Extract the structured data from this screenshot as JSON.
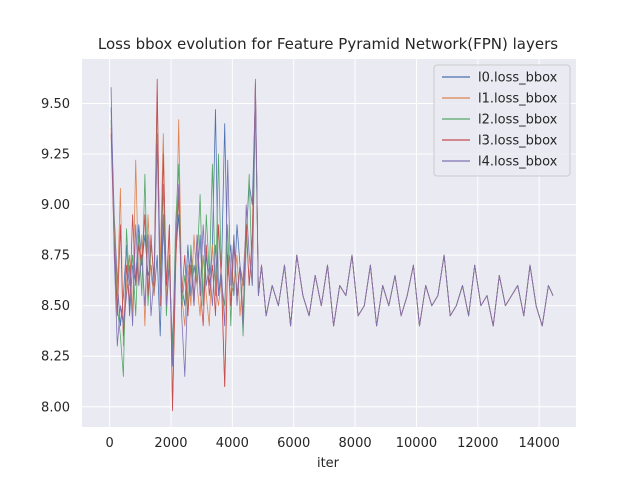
{
  "chart_data": {
    "type": "line",
    "title": "Loss bbox evolution for Feature Pyramid Network(FPN) layers",
    "xlabel": "iter",
    "ylabel": "",
    "xlim": [
      -900,
      15200
    ],
    "ylim": [
      7.9,
      9.72
    ],
    "xticks": [
      0,
      2000,
      4000,
      6000,
      8000,
      10000,
      12000,
      14000
    ],
    "xtick_labels": [
      "0",
      "2000",
      "4000",
      "6000",
      "8000",
      "10000",
      "12000",
      "14000"
    ],
    "yticks": [
      8.0,
      8.25,
      8.5,
      8.75,
      9.0,
      9.25,
      9.5
    ],
    "ytick_labels": [
      "8.00",
      "8.25",
      "8.50",
      "8.75",
      "9.00",
      "9.25",
      "9.50"
    ],
    "grid": true,
    "legend_position": "top-right",
    "x": [
      50,
      150,
      250,
      350,
      450,
      550,
      650,
      750,
      850,
      950,
      1050,
      1150,
      1250,
      1350,
      1450,
      1550,
      1650,
      1750,
      1850,
      1950,
      2050,
      2150,
      2250,
      2350,
      2450,
      2550,
      2650,
      2750,
      2850,
      2950,
      3050,
      3150,
      3250,
      3350,
      3450,
      3550,
      3650,
      3750,
      3850,
      3950,
      4050,
      4150,
      4250,
      4350,
      4450,
      4550,
      4650,
      4750,
      4850,
      4950,
      5100,
      5300,
      5500,
      5700,
      5900,
      6100,
      6300,
      6500,
      6700,
      6900,
      7100,
      7300,
      7500,
      7700,
      7900,
      8100,
      8300,
      8500,
      8700,
      8900,
      9100,
      9300,
      9500,
      9700,
      9900,
      10100,
      10300,
      10500,
      10700,
      10900,
      11100,
      11300,
      11500,
      11700,
      11900,
      12100,
      12300,
      12500,
      12700,
      12900,
      13100,
      13300,
      13500,
      13700,
      13900,
      14100,
      14300,
      14450
    ],
    "series": [
      {
        "name": "l0.loss_bbox",
        "color": "#4c72b0",
        "values": [
          9.48,
          8.95,
          8.62,
          8.4,
          8.55,
          8.8,
          8.45,
          8.7,
          8.62,
          8.9,
          8.7,
          8.85,
          8.65,
          8.7,
          8.55,
          8.75,
          8.35,
          8.9,
          8.6,
          8.7,
          8.3,
          8.75,
          8.95,
          8.6,
          8.5,
          8.8,
          8.55,
          8.7,
          8.6,
          8.85,
          8.5,
          8.75,
          8.6,
          8.8,
          9.47,
          8.55,
          8.7,
          9.4,
          8.65,
          8.8,
          8.55,
          8.9,
          8.7,
          8.6,
          8.85,
          9.1,
          9.0,
          9.55,
          8.55,
          8.7,
          8.45,
          8.6,
          8.5,
          8.7,
          8.4,
          8.75,
          8.55,
          8.45,
          8.65,
          8.5,
          8.7,
          8.4,
          8.6,
          8.55,
          8.75,
          8.45,
          8.5,
          8.7,
          8.4,
          8.6,
          8.5,
          8.65,
          8.45,
          8.55,
          8.7,
          8.4,
          8.6,
          8.5,
          8.55,
          8.75,
          8.45,
          8.5,
          8.6,
          8.45,
          8.7,
          8.5,
          8.55,
          8.4,
          8.65,
          8.5,
          8.55,
          8.6,
          8.45,
          8.7,
          8.5,
          8.4,
          8.6,
          8.55
        ]
      },
      {
        "name": "l1.loss_bbox",
        "color": "#dd8452",
        "values": [
          9.38,
          8.9,
          8.55,
          9.08,
          8.3,
          8.6,
          8.75,
          8.45,
          9.22,
          8.6,
          8.85,
          8.4,
          8.95,
          8.65,
          8.55,
          9.35,
          8.7,
          9.35,
          8.5,
          8.9,
          8.0,
          8.65,
          9.42,
          8.55,
          8.4,
          8.7,
          8.5,
          8.85,
          8.6,
          8.45,
          8.75,
          8.55,
          8.4,
          8.8,
          8.6,
          8.5,
          8.65,
          8.1,
          8.7,
          8.55,
          8.6,
          8.75,
          8.45,
          8.65,
          8.9,
          8.6,
          8.8,
          9.6,
          8.55,
          8.7,
          8.45,
          8.6,
          8.5,
          8.7,
          8.4,
          8.75,
          8.55,
          8.45,
          8.65,
          8.5,
          8.7,
          8.4,
          8.6,
          8.55,
          8.75,
          8.45,
          8.5,
          8.7,
          8.4,
          8.6,
          8.5,
          8.65,
          8.45,
          8.55,
          8.7,
          8.4,
          8.6,
          8.5,
          8.55,
          8.75,
          8.45,
          8.5,
          8.6,
          8.45,
          8.7,
          8.5,
          8.55,
          8.4,
          8.65,
          8.5,
          8.55,
          8.6,
          8.45,
          8.7,
          8.5,
          8.4,
          8.6,
          8.55
        ]
      },
      {
        "name": "l2.loss_bbox",
        "color": "#55a868",
        "values": [
          9.42,
          8.85,
          8.5,
          8.35,
          8.15,
          8.88,
          8.6,
          8.75,
          8.45,
          8.85,
          8.55,
          9.15,
          8.5,
          8.8,
          8.65,
          9.55,
          8.6,
          9.1,
          8.45,
          8.75,
          8.25,
          8.9,
          9.2,
          8.5,
          8.65,
          8.45,
          8.8,
          8.55,
          8.7,
          9.05,
          8.5,
          8.95,
          8.65,
          9.2,
          8.55,
          9.25,
          8.6,
          8.5,
          8.9,
          8.4,
          8.85,
          8.55,
          8.7,
          8.35,
          8.8,
          9.15,
          8.6,
          9.5,
          8.55,
          8.7,
          8.45,
          8.6,
          8.5,
          8.7,
          8.4,
          8.75,
          8.55,
          8.45,
          8.65,
          8.5,
          8.7,
          8.4,
          8.6,
          8.55,
          8.75,
          8.45,
          8.5,
          8.7,
          8.4,
          8.6,
          8.5,
          8.65,
          8.45,
          8.55,
          8.7,
          8.4,
          8.6,
          8.5,
          8.55,
          8.75,
          8.45,
          8.5,
          8.6,
          8.45,
          8.7,
          8.5,
          8.55,
          8.4,
          8.65,
          8.5,
          8.55,
          8.6,
          8.45,
          8.7,
          8.5,
          8.4,
          8.6,
          8.55
        ]
      },
      {
        "name": "l3.loss_bbox",
        "color": "#c44e52",
        "values": [
          9.35,
          8.8,
          8.45,
          8.9,
          8.35,
          8.7,
          8.5,
          8.95,
          8.6,
          8.8,
          8.7,
          8.95,
          8.55,
          8.85,
          8.6,
          9.62,
          8.5,
          9.25,
          8.6,
          8.9,
          7.98,
          8.7,
          9.05,
          8.55,
          8.75,
          8.45,
          8.7,
          8.5,
          8.85,
          8.6,
          8.4,
          8.8,
          8.55,
          8.7,
          8.45,
          8.9,
          8.6,
          8.1,
          8.75,
          8.5,
          8.8,
          8.55,
          8.7,
          8.45,
          8.9,
          8.6,
          8.85,
          9.6,
          8.55,
          8.7,
          8.45,
          8.6,
          8.5,
          8.7,
          8.4,
          8.75,
          8.55,
          8.45,
          8.65,
          8.5,
          8.7,
          8.4,
          8.6,
          8.55,
          8.75,
          8.45,
          8.5,
          8.7,
          8.4,
          8.6,
          8.5,
          8.65,
          8.45,
          8.55,
          8.7,
          8.4,
          8.6,
          8.5,
          8.55,
          8.75,
          8.45,
          8.5,
          8.6,
          8.45,
          8.7,
          8.5,
          8.55,
          8.4,
          8.65,
          8.5,
          8.55,
          8.6,
          8.45,
          8.7,
          8.5,
          8.4,
          8.6,
          8.55
        ]
      },
      {
        "name": "l4.loss_bbox",
        "color": "#8172b3",
        "values": [
          9.58,
          8.75,
          8.3,
          8.5,
          8.4,
          8.55,
          8.7,
          8.4,
          8.9,
          8.6,
          8.75,
          8.5,
          8.85,
          8.45,
          8.65,
          9.3,
          8.55,
          8.95,
          8.5,
          8.7,
          8.2,
          8.8,
          9.1,
          8.45,
          8.15,
          8.6,
          8.75,
          8.5,
          8.85,
          8.55,
          8.9,
          8.6,
          8.7,
          8.5,
          8.8,
          8.55,
          8.65,
          8.4,
          9.22,
          8.6,
          8.85,
          8.5,
          8.7,
          8.4,
          9.0,
          8.75,
          8.6,
          9.62,
          8.55,
          8.7,
          8.45,
          8.6,
          8.5,
          8.7,
          8.4,
          8.75,
          8.55,
          8.45,
          8.65,
          8.5,
          8.7,
          8.4,
          8.6,
          8.55,
          8.75,
          8.45,
          8.5,
          8.7,
          8.4,
          8.6,
          8.5,
          8.65,
          8.45,
          8.55,
          8.7,
          8.4,
          8.6,
          8.5,
          8.55,
          8.75,
          8.45,
          8.5,
          8.6,
          8.45,
          8.7,
          8.5,
          8.55,
          8.4,
          8.65,
          8.5,
          8.55,
          8.6,
          8.45,
          8.7,
          8.5,
          8.4,
          8.6,
          8.55
        ]
      }
    ]
  }
}
